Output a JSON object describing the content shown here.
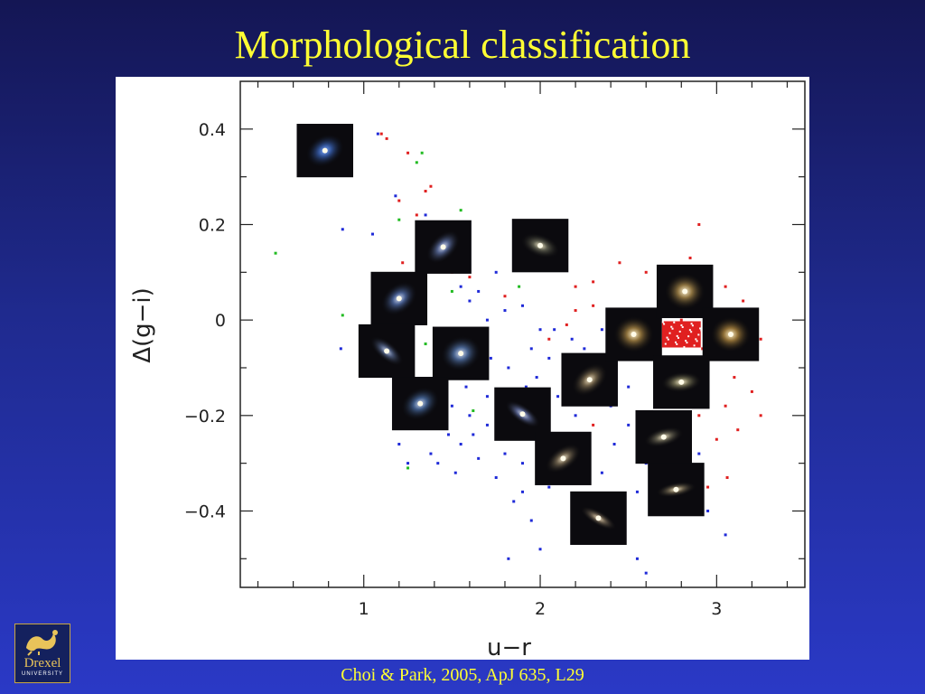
{
  "title": "Morphological classification",
  "citation": "Choi & Park, 2005, ApJ 635, L29",
  "logo": {
    "word": "Drexel",
    "sub": "UNIVERSITY"
  },
  "colors": {
    "title": "#ffff33",
    "early": "#e02020",
    "late": "#1f2ad8",
    "other": "#22bb22"
  },
  "chart_data": {
    "type": "scatter",
    "title": "",
    "xlabel": "u−r",
    "ylabel": "Δ(g−i)",
    "xlim": [
      0.3,
      3.5
    ],
    "ylim": [
      -0.56,
      0.5
    ],
    "xticks": [
      1,
      2,
      3
    ],
    "xtick_labels": [
      "1",
      "2",
      "3"
    ],
    "yticks": [
      0.4,
      0.2,
      0,
      -0.2,
      -0.4
    ],
    "ytick_labels": [
      "0.4",
      "0.2",
      "0",
      "−0.2",
      "−0.4"
    ],
    "grid": false,
    "legend": "none",
    "series": [
      {
        "color": "#e02020",
        "points": [
          [
            1.1,
            0.39
          ],
          [
            1.13,
            0.38
          ],
          [
            1.25,
            0.35
          ],
          [
            1.35,
            0.27
          ],
          [
            1.38,
            0.28
          ],
          [
            1.2,
            0.25
          ],
          [
            1.3,
            0.22
          ],
          [
            1.22,
            0.12
          ],
          [
            1.5,
            0.1
          ],
          [
            1.6,
            0.09
          ],
          [
            2.2,
            0.07
          ],
          [
            2.3,
            0.08
          ],
          [
            2.45,
            0.12
          ],
          [
            2.6,
            0.1
          ],
          [
            2.75,
            0.1
          ],
          [
            2.9,
            0.2
          ],
          [
            2.85,
            0.13
          ],
          [
            2.95,
            0.08
          ],
          [
            3.05,
            0.07
          ],
          [
            3.15,
            0.04
          ],
          [
            2.3,
            0.03
          ],
          [
            2.4,
            0.0
          ],
          [
            2.55,
            0.02
          ],
          [
            2.2,
            0.02
          ],
          [
            2.15,
            -0.01
          ],
          [
            3.2,
            0.0
          ],
          [
            3.25,
            -0.04
          ],
          [
            3.18,
            -0.08
          ],
          [
            3.1,
            -0.12
          ],
          [
            3.2,
            -0.15
          ],
          [
            3.05,
            -0.18
          ],
          [
            3.25,
            -0.2
          ],
          [
            2.9,
            -0.2
          ],
          [
            3.0,
            -0.25
          ],
          [
            3.12,
            -0.23
          ],
          [
            2.85,
            -0.27
          ],
          [
            2.92,
            -0.06
          ],
          [
            2.7,
            -0.03
          ],
          [
            2.8,
            0.0
          ],
          [
            2.2,
            -0.1
          ],
          [
            2.05,
            -0.04
          ],
          [
            2.3,
            -0.22
          ],
          [
            2.95,
            -0.35
          ],
          [
            3.06,
            -0.33
          ],
          [
            2.45,
            -0.38
          ],
          [
            3.15,
            -0.05
          ],
          [
            3.1,
            0.02
          ],
          [
            2.6,
            -0.06
          ],
          [
            1.8,
            0.05
          ]
        ]
      },
      {
        "color": "#1f2ad8",
        "points": [
          [
            1.08,
            0.39
          ],
          [
            0.88,
            0.19
          ],
          [
            1.05,
            0.18
          ],
          [
            1.18,
            0.26
          ],
          [
            1.35,
            0.22
          ],
          [
            1.5,
            0.12
          ],
          [
            1.55,
            0.07
          ],
          [
            1.65,
            0.06
          ],
          [
            1.75,
            0.1
          ],
          [
            1.6,
            0.04
          ],
          [
            1.7,
            0.0
          ],
          [
            1.8,
            0.02
          ],
          [
            1.9,
            0.03
          ],
          [
            2.0,
            -0.02
          ],
          [
            1.55,
            -0.02
          ],
          [
            1.65,
            -0.05
          ],
          [
            1.45,
            -0.1
          ],
          [
            1.58,
            -0.14
          ],
          [
            1.7,
            -0.16
          ],
          [
            1.82,
            -0.1
          ],
          [
            1.95,
            -0.06
          ],
          [
            2.05,
            -0.08
          ],
          [
            2.15,
            -0.12
          ],
          [
            2.25,
            -0.06
          ],
          [
            2.35,
            -0.02
          ],
          [
            2.45,
            -0.08
          ],
          [
            2.5,
            -0.14
          ],
          [
            2.4,
            -0.18
          ],
          [
            2.3,
            -0.15
          ],
          [
            2.2,
            -0.2
          ],
          [
            2.1,
            -0.24
          ],
          [
            2.0,
            -0.27
          ],
          [
            1.9,
            -0.3
          ],
          [
            1.8,
            -0.28
          ],
          [
            1.7,
            -0.22
          ],
          [
            1.6,
            -0.2
          ],
          [
            1.5,
            -0.18
          ],
          [
            1.55,
            -0.26
          ],
          [
            1.65,
            -0.29
          ],
          [
            1.75,
            -0.33
          ],
          [
            1.85,
            -0.38
          ],
          [
            1.9,
            -0.36
          ],
          [
            1.95,
            -0.42
          ],
          [
            2.05,
            -0.35
          ],
          [
            2.2,
            -0.32
          ],
          [
            2.3,
            -0.38
          ],
          [
            2.35,
            -0.45
          ],
          [
            2.45,
            -0.42
          ],
          [
            2.55,
            -0.36
          ],
          [
            2.6,
            -0.3
          ],
          [
            2.65,
            -0.25
          ],
          [
            2.7,
            -0.2
          ],
          [
            2.75,
            -0.15
          ],
          [
            2.8,
            -0.25
          ],
          [
            2.9,
            -0.28
          ],
          [
            2.95,
            -0.4
          ],
          [
            3.05,
            -0.45
          ],
          [
            2.55,
            -0.5
          ],
          [
            2.6,
            -0.53
          ],
          [
            1.82,
            -0.5
          ],
          [
            2.0,
            -0.48
          ],
          [
            0.87,
            -0.06
          ],
          [
            1.02,
            -0.1
          ],
          [
            1.12,
            -0.08
          ],
          [
            1.2,
            -0.26
          ],
          [
            1.25,
            -0.3
          ],
          [
            1.38,
            -0.28
          ],
          [
            1.48,
            -0.24
          ],
          [
            2.1,
            -0.16
          ],
          [
            2.18,
            -0.04
          ],
          [
            2.28,
            -0.1
          ],
          [
            2.42,
            -0.26
          ],
          [
            2.5,
            -0.22
          ],
          [
            1.92,
            -0.14
          ],
          [
            2.02,
            -0.18
          ],
          [
            1.68,
            -0.12
          ],
          [
            1.78,
            -0.18
          ],
          [
            1.88,
            -0.22
          ],
          [
            1.98,
            -0.12
          ],
          [
            2.08,
            -0.02
          ],
          [
            1.72,
            -0.08
          ],
          [
            1.62,
            -0.24
          ],
          [
            1.52,
            -0.32
          ],
          [
            1.42,
            -0.3
          ],
          [
            2.25,
            -0.28
          ],
          [
            2.35,
            -0.32
          ],
          [
            2.62,
            -0.4
          ],
          [
            2.72,
            -0.34
          ],
          [
            2.82,
            -0.36
          ]
        ]
      },
      {
        "color": "#22bb22",
        "points": [
          [
            0.5,
            0.14
          ],
          [
            1.3,
            0.33
          ],
          [
            1.33,
            0.35
          ],
          [
            1.2,
            0.21
          ],
          [
            1.55,
            0.23
          ],
          [
            1.88,
            0.07
          ],
          [
            1.5,
            0.06
          ],
          [
            1.35,
            -0.05
          ],
          [
            1.45,
            -0.2
          ],
          [
            1.25,
            -0.31
          ],
          [
            0.88,
            0.01
          ],
          [
            1.62,
            -0.19
          ]
        ]
      }
    ],
    "thumbnails": [
      {
        "name": "irregular-blue",
        "x": 0.78,
        "y": 0.355,
        "w": 0.32,
        "h": 0.112,
        "core": "#7aa7ff",
        "halo": "#2f4f90",
        "aspect": 0.75,
        "angle": -30
      },
      {
        "name": "spiral-a",
        "x": 1.45,
        "y": 0.153,
        "w": 0.32,
        "h": 0.112,
        "core": "#d8dff7",
        "halo": "#4f5e88",
        "aspect": 0.6,
        "angle": -45
      },
      {
        "name": "spiral-compact",
        "x": 2.0,
        "y": 0.156,
        "w": 0.32,
        "h": 0.112,
        "core": "#f0e8c8",
        "halo": "#5a5a4c",
        "aspect": 0.55,
        "angle": 20
      },
      {
        "name": "spiral-b",
        "x": 1.2,
        "y": 0.045,
        "w": 0.32,
        "h": 0.112,
        "core": "#d0dbf5",
        "halo": "#445a8a",
        "aspect": 0.7,
        "angle": -40
      },
      {
        "name": "spiral-c",
        "x": 1.13,
        "y": -0.065,
        "w": 0.32,
        "h": 0.112,
        "core": "#c8d2ee",
        "halo": "#4a5878",
        "aspect": 0.45,
        "angle": 40
      },
      {
        "name": "spiral-d",
        "x": 1.55,
        "y": -0.07,
        "w": 0.32,
        "h": 0.112,
        "core": "#d2dcf2",
        "halo": "#46608c",
        "aspect": 0.85,
        "angle": -20
      },
      {
        "name": "spiral-e",
        "x": 1.32,
        "y": -0.175,
        "w": 0.32,
        "h": 0.112,
        "core": "#cdd8f0",
        "halo": "#3e5a86",
        "aspect": 0.75,
        "angle": -30
      },
      {
        "name": "edge-a",
        "x": 1.9,
        "y": -0.197,
        "w": 0.32,
        "h": 0.112,
        "core": "#dde2ee",
        "halo": "#55608a",
        "aspect": 0.42,
        "angle": 35
      },
      {
        "name": "spiral-f",
        "x": 2.13,
        "y": -0.29,
        "w": 0.32,
        "h": 0.112,
        "core": "#efe2c5",
        "halo": "#6a5e4a",
        "aspect": 0.55,
        "angle": -35
      },
      {
        "name": "edge-b",
        "x": 2.33,
        "y": -0.415,
        "w": 0.32,
        "h": 0.112,
        "core": "#f2dfbe",
        "halo": "#6c6050",
        "aspect": 0.35,
        "angle": 30
      },
      {
        "name": "sab-a",
        "x": 2.28,
        "y": -0.125,
        "w": 0.32,
        "h": 0.112,
        "core": "#f0e0c0",
        "halo": "#6e6048",
        "aspect": 0.65,
        "angle": -40
      },
      {
        "name": "elliptical-a",
        "x": 2.53,
        "y": -0.03,
        "w": 0.32,
        "h": 0.112,
        "core": "#fff0c8",
        "halo": "#8a6e3a",
        "aspect": 0.9,
        "angle": 0
      },
      {
        "name": "elliptical-b",
        "x": 2.82,
        "y": 0.06,
        "w": 0.32,
        "h": 0.112,
        "core": "#fff1cc",
        "halo": "#8c7240",
        "aspect": 0.9,
        "angle": 0
      },
      {
        "name": "elliptical-c",
        "x": 3.08,
        "y": -0.03,
        "w": 0.32,
        "h": 0.112,
        "core": "#ffefc4",
        "halo": "#8e6e36",
        "aspect": 0.88,
        "angle": 0
      },
      {
        "name": "lenticular-a",
        "x": 2.8,
        "y": -0.13,
        "w": 0.32,
        "h": 0.112,
        "core": "#f8eecf",
        "halo": "#6e6a50",
        "aspect": 0.5,
        "angle": -5
      },
      {
        "name": "sa-a",
        "x": 2.7,
        "y": -0.245,
        "w": 0.32,
        "h": 0.112,
        "core": "#f2e6c8",
        "halo": "#646050",
        "aspect": 0.45,
        "angle": -15
      },
      {
        "name": "sa-b",
        "x": 2.77,
        "y": -0.355,
        "w": 0.32,
        "h": 0.112,
        "core": "#efe3c2",
        "halo": "#6a604c",
        "aspect": 0.35,
        "angle": -10
      }
    ],
    "highlight": {
      "x": 2.8,
      "y": -0.03,
      "w": 0.22,
      "h": 0.055,
      "color": "#e02020"
    }
  }
}
